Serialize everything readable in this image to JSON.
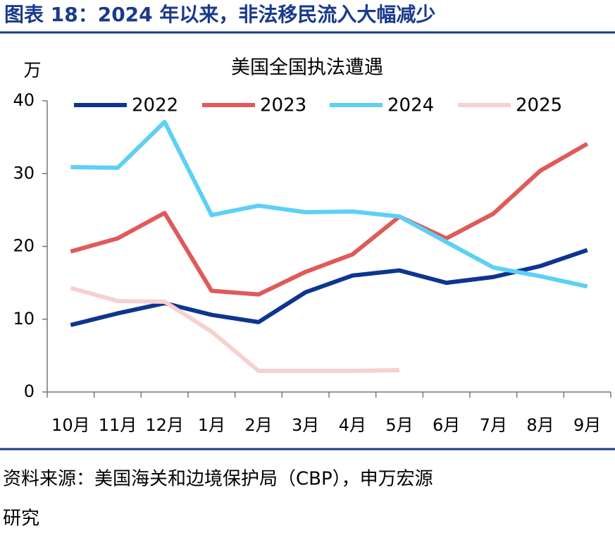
{
  "header": {
    "title": "图表 18：2024 年以来，非法移民流入大幅减少"
  },
  "chart_data": {
    "type": "line",
    "title": "美国全国执法遭遇",
    "y_label": "万",
    "categories": [
      "10月",
      "11月",
      "12月",
      "1月",
      "2月",
      "3月",
      "4月",
      "5月",
      "6月",
      "7月",
      "8月",
      "9月"
    ],
    "series": [
      {
        "name": "2022",
        "color": "#0d3591",
        "values": [
          9.2,
          10.8,
          12.2,
          10.6,
          9.6,
          13.7,
          16.0,
          16.7,
          15.0,
          15.8,
          17.3,
          19.5
        ]
      },
      {
        "name": "2023",
        "color": "#e05a5a",
        "values": [
          19.3,
          21.1,
          24.6,
          13.9,
          13.4,
          16.5,
          18.9,
          24.1,
          21.1,
          24.5,
          30.4,
          34.1
        ]
      },
      {
        "name": "2024",
        "color": "#5dd0f5",
        "values": [
          30.9,
          30.8,
          37.1,
          24.3,
          25.6,
          24.7,
          24.8,
          24.1,
          20.6,
          17.1,
          15.9,
          14.5
        ]
      },
      {
        "name": "2025",
        "color": "#f7d0cf",
        "values": [
          14.3,
          12.5,
          12.4,
          8.3,
          2.9,
          2.9,
          2.9,
          3.0,
          null,
          null,
          null,
          null
        ]
      }
    ],
    "ylim": [
      0,
      40
    ],
    "yticks": [
      0,
      10,
      20,
      30,
      40
    ],
    "grid": false,
    "legend": "top"
  },
  "footer": {
    "source": [
      "资料来源：美国海关和边境保护局（CBP），申万宏源",
      "研究"
    ]
  }
}
